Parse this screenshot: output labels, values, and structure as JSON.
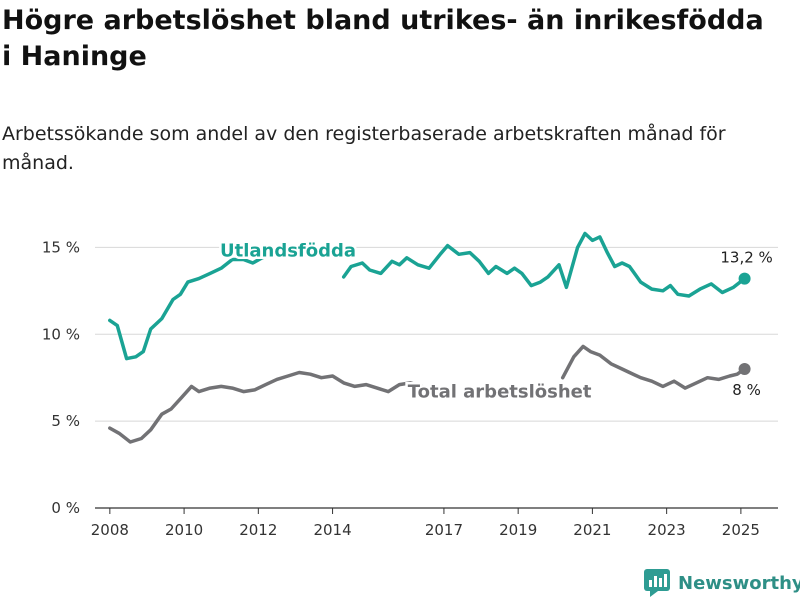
{
  "header": {
    "title": "Högre arbetslöshet bland utrikes- än inrikesfödda i Haninge",
    "subtitle": "Arbetssökande som andel av den registerbaserade arbetskraften månad för månad."
  },
  "brand": {
    "name": "Newsworthy",
    "color": "#2e9c93"
  },
  "chart_data": {
    "type": "line",
    "title": "Högre arbetslöshet bland utrikes- än inrikesfödda i Haninge",
    "ylim": [
      0,
      16
    ],
    "yticks": [
      {
        "value": 0,
        "label": "0 %"
      },
      {
        "value": 5,
        "label": "5 %"
      },
      {
        "value": 10,
        "label": "10 %"
      },
      {
        "value": 15,
        "label": "15 %"
      }
    ],
    "xlim": [
      2007.6,
      2026.0
    ],
    "xticks": [
      {
        "value": 2008,
        "label": "2008"
      },
      {
        "value": 2010,
        "label": "2010"
      },
      {
        "value": 2012,
        "label": "2012"
      },
      {
        "value": 2014,
        "label": "2014"
      },
      {
        "value": 2017,
        "label": "2017"
      },
      {
        "value": 2019,
        "label": "2019"
      },
      {
        "value": 2021,
        "label": "2021"
      },
      {
        "value": 2023,
        "label": "2023"
      },
      {
        "value": 2025,
        "label": "2025"
      }
    ],
    "grid": true,
    "series": [
      {
        "name": "Utlandsfödda",
        "color": "#1aa394",
        "end_label": "13,2 %",
        "segments": [
          [
            [
              2008.0,
              10.8
            ],
            [
              2008.2,
              10.5
            ],
            [
              2008.45,
              8.6
            ],
            [
              2008.7,
              8.7
            ],
            [
              2008.9,
              9.0
            ],
            [
              2009.1,
              10.3
            ],
            [
              2009.4,
              10.9
            ],
            [
              2009.7,
              12.0
            ],
            [
              2009.9,
              12.3
            ],
            [
              2010.1,
              13.0
            ],
            [
              2010.4,
              13.2
            ],
            [
              2010.7,
              13.5
            ],
            [
              2011.0,
              13.8
            ],
            [
              2011.3,
              14.3
            ],
            [
              2011.6,
              14.3
            ],
            [
              2011.85,
              14.1
            ],
            [
              2012.1,
              14.4
            ],
            [
              2012.5,
              14.7
            ],
            [
              2013.0,
              14.9
            ],
            [
              2013.5,
              14.7
            ],
            [
              2014.0,
              14.6
            ],
            [
              2014.2,
              14.5
            ]
          ],
          [
            [
              2014.3,
              13.3
            ],
            [
              2014.5,
              13.9
            ],
            [
              2014.8,
              14.1
            ],
            [
              2015.0,
              13.7
            ],
            [
              2015.3,
              13.5
            ],
            [
              2015.6,
              14.2
            ],
            [
              2015.8,
              14.0
            ],
            [
              2016.0,
              14.4
            ],
            [
              2016.3,
              14.0
            ],
            [
              2016.6,
              13.8
            ],
            [
              2016.9,
              14.6
            ],
            [
              2017.1,
              15.1
            ],
            [
              2017.4,
              14.6
            ],
            [
              2017.7,
              14.7
            ],
            [
              2017.95,
              14.2
            ],
            [
              2018.2,
              13.5
            ],
            [
              2018.4,
              13.9
            ],
            [
              2018.7,
              13.5
            ],
            [
              2018.9,
              13.8
            ],
            [
              2019.1,
              13.5
            ],
            [
              2019.35,
              12.8
            ],
            [
              2019.6,
              13.0
            ],
            [
              2019.8,
              13.3
            ],
            [
              2020.1,
              14.0
            ],
            [
              2020.3,
              12.7
            ],
            [
              2020.6,
              15.0
            ],
            [
              2020.8,
              15.8
            ],
            [
              2021.0,
              15.4
            ],
            [
              2021.2,
              15.6
            ],
            [
              2021.4,
              14.7
            ],
            [
              2021.6,
              13.9
            ],
            [
              2021.8,
              14.1
            ],
            [
              2022.0,
              13.9
            ],
            [
              2022.3,
              13.0
            ],
            [
              2022.6,
              12.6
            ],
            [
              2022.9,
              12.5
            ],
            [
              2023.1,
              12.8
            ],
            [
              2023.3,
              12.3
            ],
            [
              2023.6,
              12.2
            ],
            [
              2023.9,
              12.6
            ],
            [
              2024.2,
              12.9
            ],
            [
              2024.5,
              12.4
            ],
            [
              2024.8,
              12.7
            ],
            [
              2025.1,
              13.2
            ]
          ]
        ]
      },
      {
        "name": "Total arbetslöshet",
        "color": "#727275",
        "end_label": "8 %",
        "segments": [
          [
            [
              2008.0,
              4.6
            ],
            [
              2008.25,
              4.3
            ],
            [
              2008.55,
              3.8
            ],
            [
              2008.85,
              4.0
            ],
            [
              2009.1,
              4.5
            ],
            [
              2009.4,
              5.4
            ],
            [
              2009.65,
              5.7
            ],
            [
              2009.95,
              6.4
            ],
            [
              2010.2,
              7.0
            ],
            [
              2010.4,
              6.7
            ],
            [
              2010.7,
              6.9
            ],
            [
              2011.0,
              7.0
            ],
            [
              2011.3,
              6.9
            ],
            [
              2011.6,
              6.7
            ],
            [
              2011.9,
              6.8
            ],
            [
              2012.2,
              7.1
            ],
            [
              2012.5,
              7.4
            ],
            [
              2012.8,
              7.6
            ],
            [
              2013.1,
              7.8
            ],
            [
              2013.4,
              7.7
            ],
            [
              2013.7,
              7.5
            ],
            [
              2014.0,
              7.6
            ],
            [
              2014.3,
              7.2
            ],
            [
              2014.6,
              7.0
            ],
            [
              2014.9,
              7.1
            ],
            [
              2015.2,
              6.9
            ],
            [
              2015.5,
              6.7
            ],
            [
              2015.8,
              7.1
            ],
            [
              2016.1,
              7.2
            ],
            [
              2016.4,
              7.0
            ],
            [
              2016.7,
              6.8
            ],
            [
              2016.9,
              6.7
            ]
          ],
          [
            [
              2020.2,
              7.5
            ],
            [
              2020.5,
              8.7
            ],
            [
              2020.75,
              9.3
            ],
            [
              2020.95,
              9.0
            ],
            [
              2021.2,
              8.8
            ],
            [
              2021.5,
              8.3
            ],
            [
              2021.8,
              8.0
            ],
            [
              2022.0,
              7.8
            ],
            [
              2022.3,
              7.5
            ],
            [
              2022.6,
              7.3
            ],
            [
              2022.9,
              7.0
            ],
            [
              2023.2,
              7.3
            ],
            [
              2023.5,
              6.9
            ],
            [
              2023.8,
              7.2
            ],
            [
              2024.1,
              7.5
            ],
            [
              2024.4,
              7.4
            ],
            [
              2024.7,
              7.6
            ],
            [
              2024.9,
              7.7
            ],
            [
              2025.1,
              8.0
            ]
          ]
        ]
      }
    ],
    "annotations": [
      {
        "text": "Utlandsfödda",
        "series": "Utlandsfödda"
      },
      {
        "text": "Total arbetslöshet",
        "series": "Total arbetslöshet"
      }
    ]
  }
}
